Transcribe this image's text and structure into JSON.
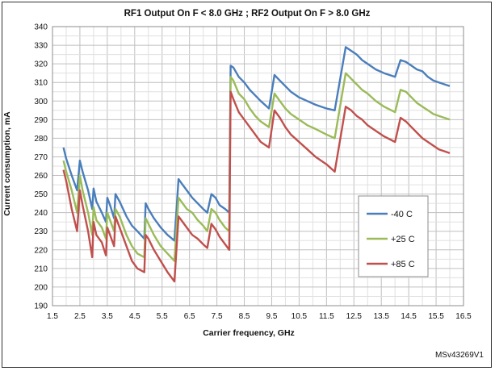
{
  "chart_data": {
    "type": "line",
    "title": "RF1 Output On  F < 8.0 GHz ; RF2 Output On  F > 8.0 GHz",
    "xlabel": "Carrier frequency, GHz",
    "ylabel": "Current consumption, mA",
    "xlim": [
      1.5,
      16.5
    ],
    "ylim": [
      190,
      340
    ],
    "x_ticks": [
      "1.5",
      "2.5",
      "3.5",
      "4.5",
      "5.5",
      "6.5",
      "7.5",
      "8.5",
      "9.5",
      "10.5",
      "11.5",
      "12.5",
      "13.5",
      "14.5",
      "15.5",
      "16.5"
    ],
    "x_tick_values": [
      1.5,
      2.5,
      3.5,
      4.5,
      5.5,
      6.5,
      7.5,
      8.5,
      9.5,
      10.5,
      11.5,
      12.5,
      13.5,
      14.5,
      15.5,
      16.5
    ],
    "y_ticks": [
      "190",
      "200",
      "210",
      "220",
      "230",
      "240",
      "250",
      "260",
      "270",
      "280",
      "290",
      "300",
      "310",
      "320",
      "330",
      "340"
    ],
    "y_tick_values": [
      190,
      200,
      210,
      220,
      230,
      240,
      250,
      260,
      270,
      280,
      290,
      300,
      310,
      320,
      330,
      340
    ],
    "grid": true,
    "legend_placement": "right-center",
    "series": [
      {
        "name": "-40 C",
        "color": "#4a7ebb",
        "points": [
          [
            1.9,
            275
          ],
          [
            2.0,
            269
          ],
          [
            2.2,
            260
          ],
          [
            2.4,
            252
          ],
          [
            2.5,
            268
          ],
          [
            2.6,
            262
          ],
          [
            2.8,
            252
          ],
          [
            2.95,
            242
          ],
          [
            3.0,
            253
          ],
          [
            3.1,
            246
          ],
          [
            3.3,
            240
          ],
          [
            3.45,
            235
          ],
          [
            3.5,
            248
          ],
          [
            3.6,
            244
          ],
          [
            3.75,
            237
          ],
          [
            3.8,
            250
          ],
          [
            3.95,
            246
          ],
          [
            4.2,
            238
          ],
          [
            4.4,
            233
          ],
          [
            4.6,
            230
          ],
          [
            4.85,
            226
          ],
          [
            4.9,
            245
          ],
          [
            5.0,
            242
          ],
          [
            5.2,
            237
          ],
          [
            5.45,
            232
          ],
          [
            5.7,
            228
          ],
          [
            5.95,
            225
          ],
          [
            6.1,
            258
          ],
          [
            6.2,
            256
          ],
          [
            6.4,
            252
          ],
          [
            6.6,
            248
          ],
          [
            6.8,
            245
          ],
          [
            7.0,
            242
          ],
          [
            7.15,
            240
          ],
          [
            7.3,
            250
          ],
          [
            7.45,
            248
          ],
          [
            7.6,
            244
          ],
          [
            7.8,
            242
          ],
          [
            7.95,
            240
          ],
          [
            8.0,
            319
          ],
          [
            8.1,
            318
          ],
          [
            8.3,
            313
          ],
          [
            8.5,
            310
          ],
          [
            8.7,
            306
          ],
          [
            8.9,
            303
          ],
          [
            9.1,
            300
          ],
          [
            9.4,
            296
          ],
          [
            9.6,
            314
          ],
          [
            9.8,
            311
          ],
          [
            10.0,
            308
          ],
          [
            10.2,
            305
          ],
          [
            10.5,
            302
          ],
          [
            10.8,
            300
          ],
          [
            11.1,
            298
          ],
          [
            11.5,
            296
          ],
          [
            11.8,
            295
          ],
          [
            12.2,
            329
          ],
          [
            12.4,
            327
          ],
          [
            12.6,
            325
          ],
          [
            12.8,
            322
          ],
          [
            13.0,
            320
          ],
          [
            13.3,
            317
          ],
          [
            13.6,
            315
          ],
          [
            14.0,
            313
          ],
          [
            14.2,
            322
          ],
          [
            14.4,
            321
          ],
          [
            14.6,
            319
          ],
          [
            14.8,
            317
          ],
          [
            15.0,
            316
          ],
          [
            15.2,
            313
          ],
          [
            15.4,
            311
          ],
          [
            15.6,
            310
          ],
          [
            15.8,
            309
          ],
          [
            16.0,
            308
          ]
        ]
      },
      {
        "name": "+25 C",
        "color": "#9bbb59",
        "points": [
          [
            1.9,
            268
          ],
          [
            2.0,
            262
          ],
          [
            2.2,
            252
          ],
          [
            2.4,
            240
          ],
          [
            2.5,
            260
          ],
          [
            2.6,
            252
          ],
          [
            2.8,
            240
          ],
          [
            2.95,
            228
          ],
          [
            3.0,
            243
          ],
          [
            3.1,
            236
          ],
          [
            3.3,
            232
          ],
          [
            3.45,
            226
          ],
          [
            3.5,
            240
          ],
          [
            3.6,
            236
          ],
          [
            3.75,
            230
          ],
          [
            3.8,
            242
          ],
          [
            3.95,
            238
          ],
          [
            4.2,
            228
          ],
          [
            4.4,
            222
          ],
          [
            4.6,
            218
          ],
          [
            4.85,
            216
          ],
          [
            4.9,
            237
          ],
          [
            5.0,
            234
          ],
          [
            5.2,
            228
          ],
          [
            5.45,
            222
          ],
          [
            5.7,
            218
          ],
          [
            5.95,
            214
          ],
          [
            6.1,
            248
          ],
          [
            6.2,
            246
          ],
          [
            6.4,
            242
          ],
          [
            6.6,
            240
          ],
          [
            6.8,
            236
          ],
          [
            7.0,
            233
          ],
          [
            7.15,
            230
          ],
          [
            7.3,
            242
          ],
          [
            7.45,
            240
          ],
          [
            7.6,
            236
          ],
          [
            7.8,
            232
          ],
          [
            7.95,
            230
          ],
          [
            8.0,
            313
          ],
          [
            8.1,
            311
          ],
          [
            8.3,
            304
          ],
          [
            8.5,
            301
          ],
          [
            8.7,
            296
          ],
          [
            8.9,
            292
          ],
          [
            9.1,
            289
          ],
          [
            9.4,
            286
          ],
          [
            9.6,
            304
          ],
          [
            9.8,
            300
          ],
          [
            10.0,
            296
          ],
          [
            10.2,
            293
          ],
          [
            10.5,
            290
          ],
          [
            10.8,
            287
          ],
          [
            11.1,
            285
          ],
          [
            11.5,
            282
          ],
          [
            11.8,
            280
          ],
          [
            12.2,
            315
          ],
          [
            12.4,
            312
          ],
          [
            12.6,
            309
          ],
          [
            12.8,
            306
          ],
          [
            13.0,
            304
          ],
          [
            13.3,
            300
          ],
          [
            13.6,
            297
          ],
          [
            14.0,
            294
          ],
          [
            14.2,
            306
          ],
          [
            14.4,
            305
          ],
          [
            14.6,
            302
          ],
          [
            14.8,
            299
          ],
          [
            15.0,
            297
          ],
          [
            15.2,
            295
          ],
          [
            15.4,
            293
          ],
          [
            15.6,
            292
          ],
          [
            15.8,
            291
          ],
          [
            16.0,
            290
          ]
        ]
      },
      {
        "name": "+85 C",
        "color": "#c0504d",
        "points": [
          [
            1.9,
            263
          ],
          [
            2.0,
            257
          ],
          [
            2.2,
            242
          ],
          [
            2.4,
            230
          ],
          [
            2.5,
            252
          ],
          [
            2.6,
            244
          ],
          [
            2.8,
            230
          ],
          [
            2.95,
            216
          ],
          [
            3.0,
            235
          ],
          [
            3.1,
            228
          ],
          [
            3.3,
            224
          ],
          [
            3.45,
            217
          ],
          [
            3.5,
            232
          ],
          [
            3.6,
            228
          ],
          [
            3.75,
            222
          ],
          [
            3.8,
            238
          ],
          [
            3.95,
            232
          ],
          [
            4.2,
            222
          ],
          [
            4.4,
            214
          ],
          [
            4.6,
            210
          ],
          [
            4.85,
            208
          ],
          [
            4.9,
            228
          ],
          [
            5.0,
            226
          ],
          [
            5.2,
            220
          ],
          [
            5.45,
            214
          ],
          [
            5.7,
            208
          ],
          [
            5.95,
            203
          ],
          [
            6.1,
            238
          ],
          [
            6.2,
            236
          ],
          [
            6.4,
            232
          ],
          [
            6.6,
            228
          ],
          [
            6.8,
            226
          ],
          [
            7.0,
            223
          ],
          [
            7.15,
            221
          ],
          [
            7.3,
            234
          ],
          [
            7.45,
            231
          ],
          [
            7.6,
            227
          ],
          [
            7.8,
            223
          ],
          [
            7.95,
            220
          ],
          [
            8.0,
            305
          ],
          [
            8.1,
            301
          ],
          [
            8.3,
            294
          ],
          [
            8.5,
            290
          ],
          [
            8.7,
            286
          ],
          [
            8.9,
            282
          ],
          [
            9.1,
            278
          ],
          [
            9.4,
            275
          ],
          [
            9.6,
            295
          ],
          [
            9.8,
            291
          ],
          [
            10.0,
            286
          ],
          [
            10.2,
            282
          ],
          [
            10.5,
            278
          ],
          [
            10.8,
            274
          ],
          [
            11.1,
            270
          ],
          [
            11.5,
            266
          ],
          [
            11.8,
            262
          ],
          [
            12.2,
            297
          ],
          [
            12.4,
            295
          ],
          [
            12.6,
            292
          ],
          [
            12.8,
            290
          ],
          [
            13.0,
            287
          ],
          [
            13.3,
            284
          ],
          [
            13.6,
            281
          ],
          [
            14.0,
            278
          ],
          [
            14.2,
            291
          ],
          [
            14.4,
            289
          ],
          [
            14.6,
            286
          ],
          [
            14.8,
            283
          ],
          [
            15.0,
            280
          ],
          [
            15.2,
            278
          ],
          [
            15.4,
            276
          ],
          [
            15.6,
            274
          ],
          [
            15.8,
            273
          ],
          [
            16.0,
            272
          ]
        ]
      }
    ]
  },
  "figure_id": "MSv43269V1"
}
